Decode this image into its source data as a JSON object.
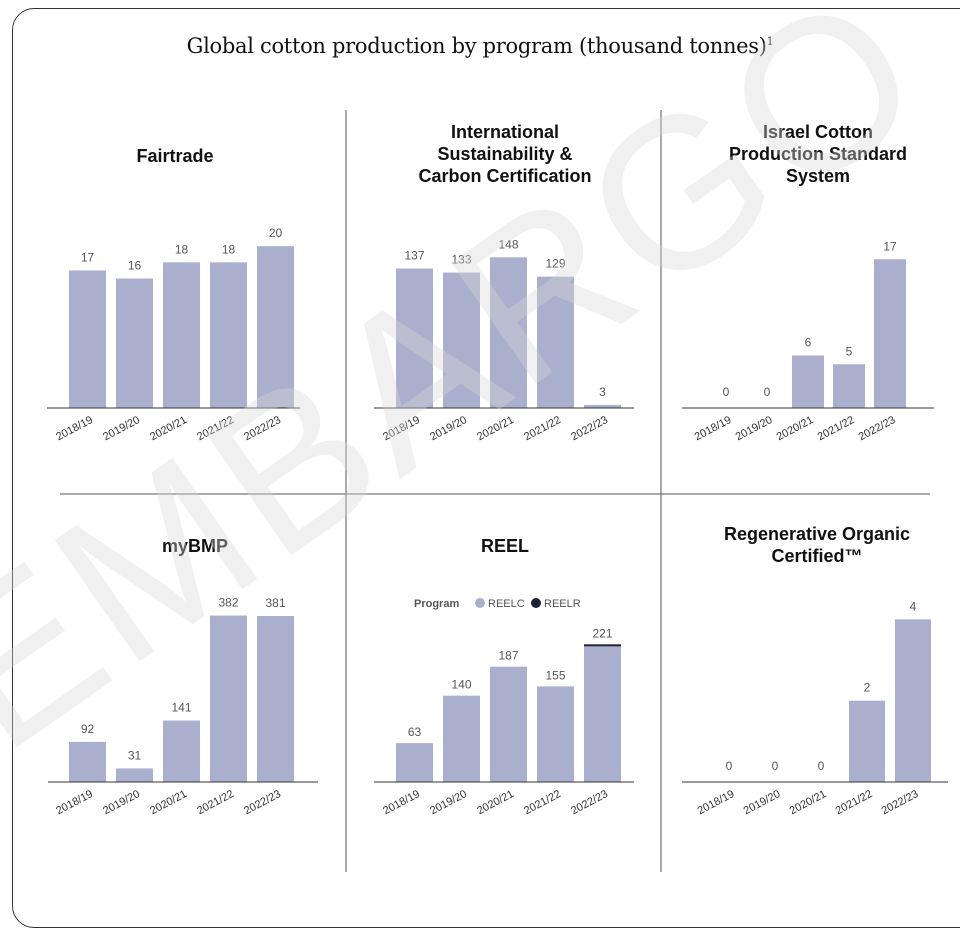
{
  "title": "Global cotton production by program (thousand tonnes)",
  "title_superscript": "1",
  "watermark": "EMBARGO",
  "colors": {
    "bar": "#a9afcc",
    "reelr": "#1c2035",
    "axis": "#333333",
    "divider": "#555555"
  },
  "chart_data": [
    {
      "type": "bar",
      "title": "Fairtrade",
      "categories": [
        "2018/19",
        "2019/20",
        "2020/21",
        "2021/22",
        "2022/23"
      ],
      "values": [
        17,
        16,
        18,
        18,
        20
      ],
      "ylim": [
        0,
        22
      ]
    },
    {
      "type": "bar",
      "title": "International Sustainability & Carbon Certification",
      "title_lines": [
        "International",
        "Sustainability &",
        "Carbon Certification"
      ],
      "categories": [
        "2018/19",
        "2019/20",
        "2020/21",
        "2021/22",
        "2022/23"
      ],
      "values": [
        137,
        133,
        148,
        129,
        3
      ],
      "ylim": [
        0,
        165
      ]
    },
    {
      "type": "bar",
      "title": "Israel Cotton Production Standard System",
      "title_lines": [
        "Israel Cotton",
        "Production Standard",
        "System"
      ],
      "categories": [
        "2018/19",
        "2019/20",
        "2020/21",
        "2021/22",
        "2022/23"
      ],
      "values": [
        0,
        0,
        6,
        5,
        17
      ],
      "ylim": [
        0,
        20
      ]
    },
    {
      "type": "bar",
      "title": "myBMP",
      "categories": [
        "2018/19",
        "2019/20",
        "2020/21",
        "2021/22",
        "2022/23"
      ],
      "values": [
        92,
        31,
        141,
        382,
        381
      ],
      "ylim": [
        0,
        420
      ]
    },
    {
      "type": "bar",
      "title": "REEL",
      "legend": {
        "title": "Program",
        "items": [
          "REELC",
          "REELR"
        ]
      },
      "categories": [
        "2018/19",
        "2019/20",
        "2020/21",
        "2021/22",
        "2022/23"
      ],
      "series": [
        {
          "name": "REELC",
          "values": [
            63,
            140,
            187,
            155,
            220
          ]
        },
        {
          "name": "REELR",
          "values": [
            0,
            0,
            0,
            0,
            1
          ]
        }
      ],
      "totals": [
        63,
        140,
        187,
        155,
        221
      ],
      "ylim": [
        0,
        240
      ]
    },
    {
      "type": "bar",
      "title": "Regenerative Organic Certified™",
      "title_lines": [
        "Regenerative Organic",
        "Certified™"
      ],
      "categories": [
        "2018/19",
        "2019/20",
        "2020/21",
        "2021/22",
        "2022/23"
      ],
      "values": [
        0,
        0,
        0,
        2,
        4
      ],
      "ylim": [
        0,
        4.6
      ]
    }
  ]
}
